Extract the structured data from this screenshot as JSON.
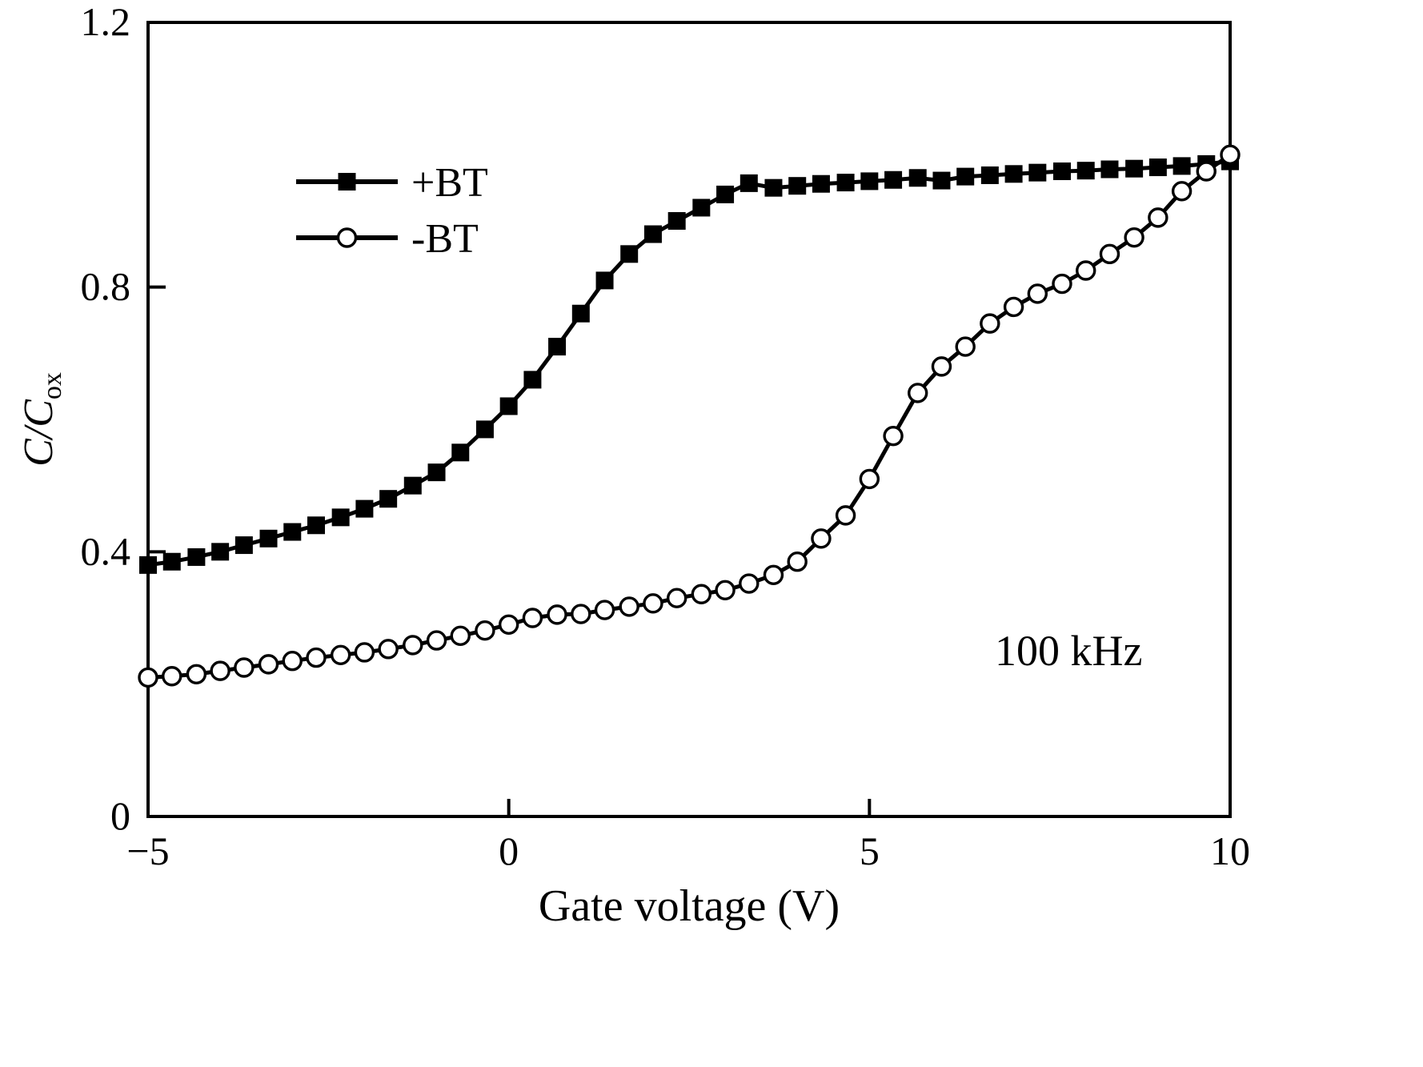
{
  "figure": {
    "xlabel": "Gate voltage (V)",
    "ylabel_main": "C/C",
    "ylabel_sub": "ox",
    "annotation": "100 kHz",
    "line_color": "#000000",
    "background": "#ffffff"
  },
  "chart_data": {
    "type": "line",
    "title": "",
    "xlabel": "Gate voltage (V)",
    "ylabel": "C/C_ox",
    "annotation": "100 kHz",
    "xlim": [
      -5,
      10
    ],
    "ylim": [
      0,
      1.2
    ],
    "grid": false,
    "legend_position": "upper-left-inside",
    "xticks": [
      {
        "v": -5,
        "label": "−5"
      },
      {
        "v": 0,
        "label": "0"
      },
      {
        "v": 5,
        "label": "5"
      },
      {
        "v": 10,
        "label": "10"
      }
    ],
    "yticks": [
      {
        "v": 0,
        "label": "0"
      },
      {
        "v": 0.4,
        "label": "0.4"
      },
      {
        "v": 0.8,
        "label": "0.8"
      },
      {
        "v": 1.2,
        "label": "1.2"
      }
    ],
    "series": [
      {
        "name": "+BT",
        "marker": "filled-square",
        "color": "#000000",
        "points": [
          [
            -5,
            0.38
          ],
          [
            -4.67,
            0.385
          ],
          [
            -4.33,
            0.392
          ],
          [
            -4,
            0.4
          ],
          [
            -3.67,
            0.41
          ],
          [
            -3.33,
            0.42
          ],
          [
            -3,
            0.43
          ],
          [
            -2.67,
            0.44
          ],
          [
            -2.33,
            0.452
          ],
          [
            -2,
            0.465
          ],
          [
            -1.67,
            0.48
          ],
          [
            -1.33,
            0.5
          ],
          [
            -1,
            0.52
          ],
          [
            -0.67,
            0.55
          ],
          [
            -0.33,
            0.585
          ],
          [
            0,
            0.62
          ],
          [
            0.33,
            0.66
          ],
          [
            0.67,
            0.71
          ],
          [
            1,
            0.76
          ],
          [
            1.33,
            0.81
          ],
          [
            1.67,
            0.85
          ],
          [
            2,
            0.88
          ],
          [
            2.33,
            0.9
          ],
          [
            2.67,
            0.92
          ],
          [
            3,
            0.94
          ],
          [
            3.33,
            0.957
          ],
          [
            3.67,
            0.95
          ],
          [
            4,
            0.953
          ],
          [
            4.33,
            0.956
          ],
          [
            4.67,
            0.958
          ],
          [
            5,
            0.96
          ],
          [
            5.33,
            0.962
          ],
          [
            5.67,
            0.965
          ],
          [
            6,
            0.961
          ],
          [
            6.33,
            0.967
          ],
          [
            6.67,
            0.969
          ],
          [
            7,
            0.971
          ],
          [
            7.33,
            0.973
          ],
          [
            7.67,
            0.975
          ],
          [
            8,
            0.976
          ],
          [
            8.33,
            0.978
          ],
          [
            8.67,
            0.979
          ],
          [
            9,
            0.981
          ],
          [
            9.33,
            0.983
          ],
          [
            9.67,
            0.986
          ],
          [
            10,
            0.99
          ]
        ]
      },
      {
        "name": "-BT",
        "marker": "open-circle",
        "color": "#000000",
        "points": [
          [
            -5,
            0.21
          ],
          [
            -4.67,
            0.212
          ],
          [
            -4.33,
            0.215
          ],
          [
            -4,
            0.22
          ],
          [
            -3.67,
            0.225
          ],
          [
            -3.33,
            0.23
          ],
          [
            -3,
            0.235
          ],
          [
            -2.67,
            0.24
          ],
          [
            -2.33,
            0.244
          ],
          [
            -2,
            0.248
          ],
          [
            -1.67,
            0.253
          ],
          [
            -1.33,
            0.259
          ],
          [
            -1,
            0.266
          ],
          [
            -0.67,
            0.273
          ],
          [
            -0.33,
            0.281
          ],
          [
            0,
            0.29
          ],
          [
            0.33,
            0.3
          ],
          [
            0.67,
            0.305
          ],
          [
            1,
            0.306
          ],
          [
            1.33,
            0.312
          ],
          [
            1.67,
            0.317
          ],
          [
            2,
            0.322
          ],
          [
            2.33,
            0.33
          ],
          [
            2.67,
            0.336
          ],
          [
            3,
            0.342
          ],
          [
            3.33,
            0.352
          ],
          [
            3.67,
            0.365
          ],
          [
            4,
            0.385
          ],
          [
            4.33,
            0.42
          ],
          [
            4.67,
            0.455
          ],
          [
            5,
            0.51
          ],
          [
            5.33,
            0.575
          ],
          [
            5.67,
            0.64
          ],
          [
            6,
            0.68
          ],
          [
            6.33,
            0.71
          ],
          [
            6.67,
            0.745
          ],
          [
            7,
            0.77
          ],
          [
            7.33,
            0.79
          ],
          [
            7.67,
            0.805
          ],
          [
            8,
            0.825
          ],
          [
            8.33,
            0.85
          ],
          [
            8.67,
            0.875
          ],
          [
            9,
            0.905
          ],
          [
            9.33,
            0.945
          ],
          [
            9.67,
            0.975
          ],
          [
            10,
            1.0
          ]
        ]
      }
    ],
    "legend": [
      {
        "label": "+BT",
        "marker": "filled-square"
      },
      {
        "label": "-BT",
        "marker": "open-circle"
      }
    ]
  }
}
